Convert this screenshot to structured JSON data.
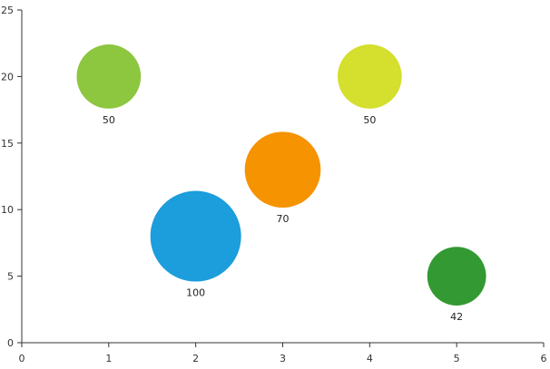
{
  "chart_data": {
    "type": "scatter",
    "title": "",
    "xlabel": "",
    "ylabel": "",
    "xlim": [
      0,
      6
    ],
    "ylim": [
      0,
      25
    ],
    "x_ticks": [
      0,
      1,
      2,
      3,
      4,
      5,
      6
    ],
    "y_ticks": [
      0,
      5,
      10,
      15,
      20,
      25
    ],
    "grid": false,
    "legend": "none",
    "bubble_size_max": 100,
    "points": [
      {
        "x": 1,
        "y": 20,
        "size": 50,
        "label": "50",
        "color": "#8dc63f"
      },
      {
        "x": 2,
        "y": 8,
        "size": 100,
        "label": "100",
        "color": "#1c9ddc"
      },
      {
        "x": 3,
        "y": 13,
        "size": 70,
        "label": "70",
        "color": "#f59300"
      },
      {
        "x": 4,
        "y": 20,
        "size": 50,
        "label": "50",
        "color": "#d4df2e"
      },
      {
        "x": 5,
        "y": 5,
        "size": 42,
        "label": "42",
        "color": "#339933"
      }
    ]
  }
}
